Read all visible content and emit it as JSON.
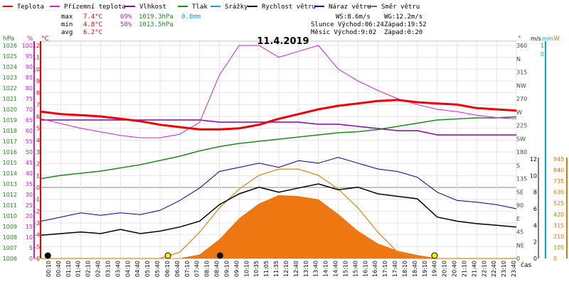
{
  "chart_data": {
    "type": "line",
    "title": "11.4.2019",
    "legend": [
      {
        "label": "Teplota",
        "color": "#ee0000"
      },
      {
        "label": "Přízemní teplota",
        "color": "#cc22cc"
      },
      {
        "label": "Vlhkost",
        "color": "#8800aa"
      },
      {
        "label": "Tlak",
        "color": "#228822"
      },
      {
        "label": "Srážky",
        "color": "#00aacc"
      },
      {
        "label": "Rychlost větru",
        "color": "#000000"
      },
      {
        "label": "Náraz větru",
        "color": "#000088"
      },
      {
        "label": "Směr větru",
        "color": "#666666"
      }
    ],
    "stats": {
      "max": {
        "label": "max",
        "temp": "7.4°C",
        "hum": "69%",
        "press": "1019.3hPa",
        "rain": "0.0mm"
      },
      "min": {
        "label": "min",
        "temp": "4.8°C",
        "hum": "58%",
        "press": "1013.5hPa"
      },
      "avg": {
        "label": "avg",
        "temp": "6.2°C"
      }
    },
    "info": {
      "ws": "WS:8.6m/s",
      "wg": "WG:12.2m/s",
      "sun_rise": "Slunce Východ:06:24",
      "sun_set": "Západ:19:52",
      "moon_rise": "Měsíc Východ:9:02",
      "moon_set": "Západ:0:20"
    },
    "axes_units": {
      "hpa": "hPa",
      "pct": "%",
      "degc": "°C",
      "deg": "°",
      "ms": "m/s",
      "mm": "mm",
      "w": "W",
      "cas": "čas"
    },
    "axis_hpa": {
      "labels": [
        "1026",
        "1025",
        "1024",
        "1023",
        "1022",
        "1021",
        "1020",
        "1019",
        "1018",
        "1017",
        "1016",
        "1015",
        "1014",
        "1013",
        "1012",
        "1011",
        "1010",
        "1009",
        "1008",
        "1007",
        "1006"
      ],
      "range": [
        1006,
        1026
      ],
      "color": "#228822"
    },
    "axis_pct": {
      "labels": [
        "100",
        "95",
        "90",
        "85",
        "80",
        "75",
        "70",
        "65",
        "60",
        "55",
        "50",
        "45",
        "40",
        "35",
        "30",
        "25",
        "20",
        "15",
        "10",
        "5",
        "0"
      ],
      "range": [
        0,
        100
      ],
      "color": "#cc22cc"
    },
    "axis_temp": {
      "labels": [
        "12",
        "11",
        "10",
        "9",
        "8",
        "7",
        "6",
        "5",
        "4",
        "3",
        "2",
        "1",
        "0",
        "-1",
        "-2",
        "-3",
        "-4",
        "-5",
        "-6"
      ],
      "range": [
        -6,
        12
      ],
      "color": "#ee0000"
    },
    "axis_dir": {
      "labels": [
        "360",
        "N",
        "315",
        "NW",
        "270",
        "W",
        "225",
        "SW",
        "180",
        "S",
        "135",
        "SE",
        "90",
        "E",
        "45",
        "NE",
        "0"
      ],
      "color": "#444444"
    },
    "axis_ms": {
      "labels": [
        "12",
        "10",
        "8",
        "6",
        "4",
        "2",
        "0"
      ],
      "range": [
        0,
        12
      ],
      "color": "#000000"
    },
    "axis_mm": {
      "labels": [
        "1",
        "0"
      ],
      "color": "#00aacc"
    },
    "axis_w": {
      "labels": [
        "945",
        "840",
        "735",
        "630",
        "525",
        "420",
        "315",
        "210",
        "105",
        "0"
      ],
      "range": [
        0,
        945
      ],
      "color": "#dd7700"
    },
    "x_ticks": [
      "00:10",
      "00:40",
      "01:10",
      "01:40",
      "02:10",
      "02:40",
      "03:10",
      "03:40",
      "04:10",
      "04:40",
      "05:10",
      "05:40",
      "06:10",
      "06:40",
      "07:10",
      "07:40",
      "08:10",
      "08:40",
      "09:10",
      "09:40",
      "10:10",
      "10:35",
      "11:05",
      "11:35",
      "12:10",
      "12:40",
      "13:10",
      "13:40",
      "14:10",
      "14:40",
      "15:10",
      "15:40",
      "16:10",
      "16:40",
      "17:10",
      "17:40",
      "18:10",
      "18:40",
      "19:10",
      "19:40",
      "20:10",
      "20:40",
      "21:10",
      "21:40",
      "22:10",
      "22:40",
      "23:10",
      "23:40"
    ],
    "x_hours": [
      0,
      1,
      2,
      3,
      4,
      5,
      6,
      7,
      8,
      9,
      10,
      11,
      12,
      13,
      14,
      15,
      16,
      17,
      18,
      19,
      20,
      21,
      22,
      23,
      24
    ],
    "temperature_c": [
      6.4,
      6.2,
      6.1,
      6.0,
      5.8,
      5.6,
      5.3,
      5.1,
      4.9,
      4.9,
      5.0,
      5.3,
      5.8,
      6.2,
      6.6,
      6.9,
      7.1,
      7.3,
      7.4,
      7.2,
      7.1,
      7.0,
      6.7,
      6.6,
      6.5
    ],
    "ground_temp_c": [
      5.8,
      5.4,
      5.0,
      4.7,
      4.4,
      4.2,
      4.2,
      4.5,
      5.5,
      9.5,
      12.0,
      12.0,
      11.0,
      11.5,
      12.0,
      10.0,
      9.0,
      8.2,
      7.5,
      7.0,
      6.6,
      6.4,
      6.1,
      5.9,
      5.8
    ],
    "humidity_pct": [
      65,
      65,
      65,
      65,
      65,
      65,
      65,
      65,
      65,
      64,
      64,
      64,
      64,
      64,
      63,
      63,
      62,
      61,
      60,
      60,
      58,
      58,
      58,
      58,
      58
    ],
    "pressure_hpa": [
      1013.5,
      1013.8,
      1014.0,
      1014.2,
      1014.5,
      1014.8,
      1015.2,
      1015.6,
      1016.1,
      1016.5,
      1016.8,
      1017.0,
      1017.2,
      1017.4,
      1017.6,
      1017.8,
      1017.9,
      1018.1,
      1018.4,
      1018.7,
      1019.0,
      1019.1,
      1019.2,
      1019.2,
      1019.3
    ],
    "wind_speed_ms": [
      2.8,
      3.0,
      3.2,
      3.0,
      3.5,
      3.0,
      3.3,
      3.8,
      4.5,
      6.5,
      7.8,
      8.6,
      8.0,
      8.5,
      9.0,
      8.3,
      8.6,
      7.8,
      7.5,
      7.2,
      5.0,
      4.5,
      4.2,
      4.0,
      3.8
    ],
    "wind_gust_ms": [
      4.5,
      5.0,
      5.5,
      5.2,
      5.5,
      5.3,
      5.8,
      7.0,
      8.5,
      10.5,
      11.0,
      11.5,
      11.0,
      11.8,
      11.5,
      12.2,
      11.5,
      10.8,
      10.5,
      9.8,
      8.0,
      7.0,
      6.8,
      6.5,
      6.0
    ],
    "solar_w": [
      0,
      0,
      0,
      0,
      0,
      0,
      0,
      0,
      35,
      180,
      380,
      520,
      600,
      590,
      560,
      420,
      260,
      140,
      70,
      30,
      0,
      0,
      0,
      0,
      0
    ],
    "solar_theoretical_w": [
      0,
      0,
      0,
      0,
      0,
      0,
      0,
      60,
      250,
      480,
      660,
      790,
      850,
      850,
      790,
      660,
      480,
      250,
      60,
      0,
      0,
      0,
      0,
      0,
      0
    ]
  }
}
